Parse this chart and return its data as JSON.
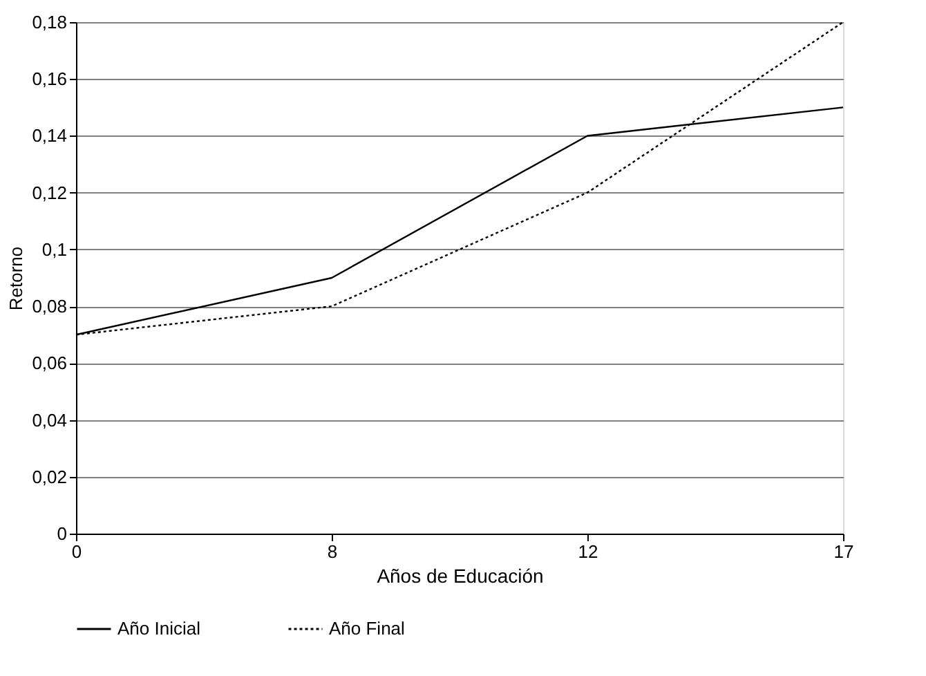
{
  "chart_data": {
    "type": "line",
    "xlabel": "Años de Educación",
    "ylabel": "Retorno",
    "categories": [
      "0",
      "8",
      "12",
      "17"
    ],
    "series": [
      {
        "name": "Año Inicial",
        "color": "#000000",
        "line_style": "solid",
        "values": [
          0.07,
          0.09,
          0.14,
          0.15
        ]
      },
      {
        "name": "Año Final",
        "color": "#000000",
        "line_style": "dotted",
        "values": [
          0.07,
          0.08,
          0.12,
          0.18
        ]
      }
    ],
    "ylim": [
      0,
      0.18
    ],
    "yticks": [
      0,
      {
        "value": 0.02,
        "label": "0,02"
      },
      {
        "value": 0.04,
        "label": "0,04"
      },
      {
        "value": 0.06,
        "label": "0,06"
      },
      {
        "value": 0.08,
        "label": "0,08"
      },
      {
        "value": 0.1,
        "label": "0,1"
      },
      {
        "value": 0.12,
        "label": "0,12"
      },
      {
        "value": 0.14,
        "label": "0,14"
      },
      {
        "value": 0.16,
        "label": "0,16"
      },
      {
        "value": 0.18,
        "label": "0,18"
      }
    ],
    "grid": "y",
    "legend": "bottom",
    "marker": "none"
  }
}
